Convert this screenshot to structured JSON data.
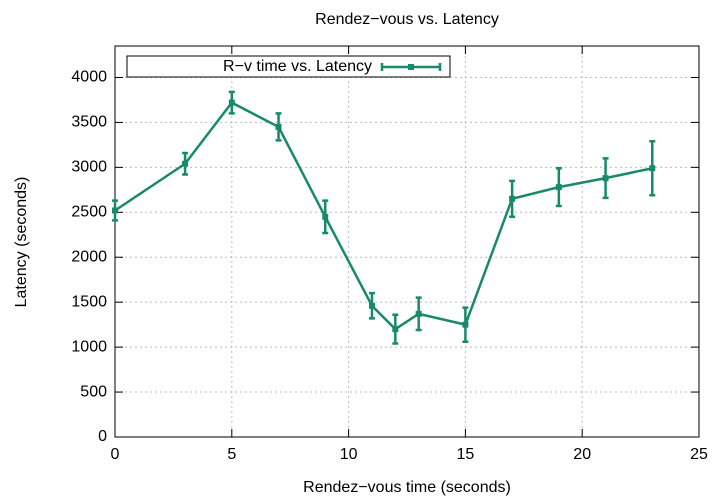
{
  "chart_data": {
    "type": "line",
    "title": "Rendez−vous vs. Latency",
    "xlabel": "Rendez−vous time (seconds)",
    "ylabel": "Latency (seconds)",
    "x": [
      0,
      3,
      5,
      7,
      9,
      11,
      12,
      13,
      15,
      17,
      19,
      21,
      23
    ],
    "series": [
      {
        "name": "R−v time vs. Latency",
        "color": "#188a6b",
        "values": [
          2520,
          3040,
          3720,
          3450,
          2450,
          1460,
          1200,
          1370,
          1250,
          2650,
          2780,
          2880,
          2990
        ],
        "errors": [
          110,
          120,
          120,
          150,
          180,
          140,
          160,
          180,
          190,
          200,
          210,
          220,
          300
        ]
      }
    ],
    "xlim": [
      0,
      25
    ],
    "xticks": [
      0,
      5,
      10,
      15,
      20,
      25
    ],
    "ylim": [
      0,
      4350
    ],
    "yticks": [
      0,
      500,
      1000,
      1500,
      2000,
      2500,
      3000,
      3500,
      4000
    ],
    "grid": true,
    "legend": "top-left"
  }
}
